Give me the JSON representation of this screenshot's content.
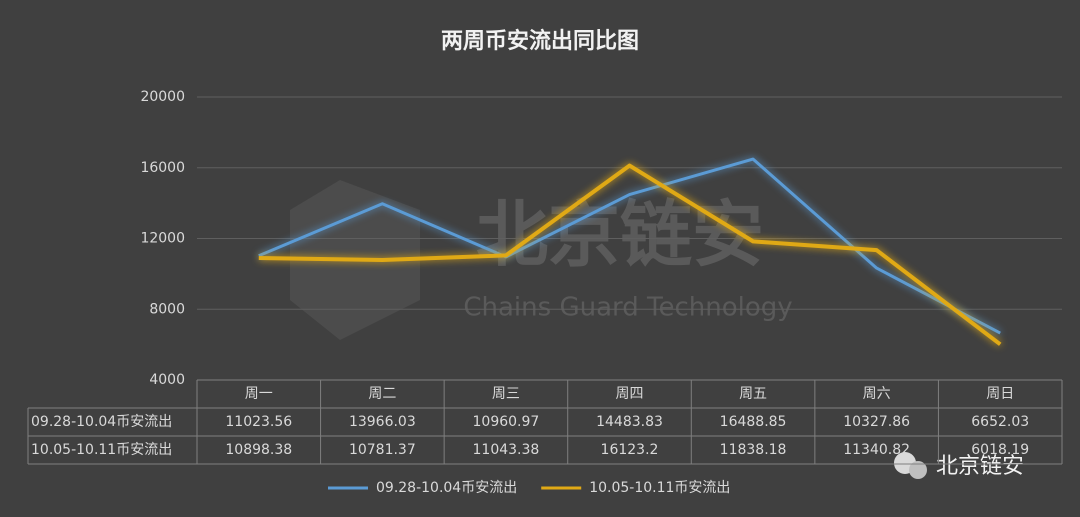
{
  "chart_data": {
    "type": "line",
    "title": "两周币安流出同比图",
    "categories": [
      "周一",
      "周二",
      "周三",
      "周四",
      "周五",
      "周六",
      "周日"
    ],
    "series": [
      {
        "name": "09.28-10.04币安流出",
        "color": "#5b9bd5",
        "values": [
          11023.56,
          13966.03,
          10960.97,
          14483.83,
          16488.85,
          10327.86,
          6652.03
        ]
      },
      {
        "name": "10.05-10.11币安流出",
        "color": "#e0a915",
        "values": [
          10898.38,
          10781.37,
          11043.38,
          16123.2,
          11838.18,
          11340.82,
          6018.19
        ]
      }
    ],
    "ylim": [
      4000,
      20000
    ],
    "yticks": [
      4000,
      8000,
      12000,
      16000,
      20000
    ],
    "grid": true,
    "data_table": true,
    "watermark": {
      "title": "北京链安",
      "subtitle": "Chains Guard Technology"
    },
    "brand": "北京链安"
  }
}
